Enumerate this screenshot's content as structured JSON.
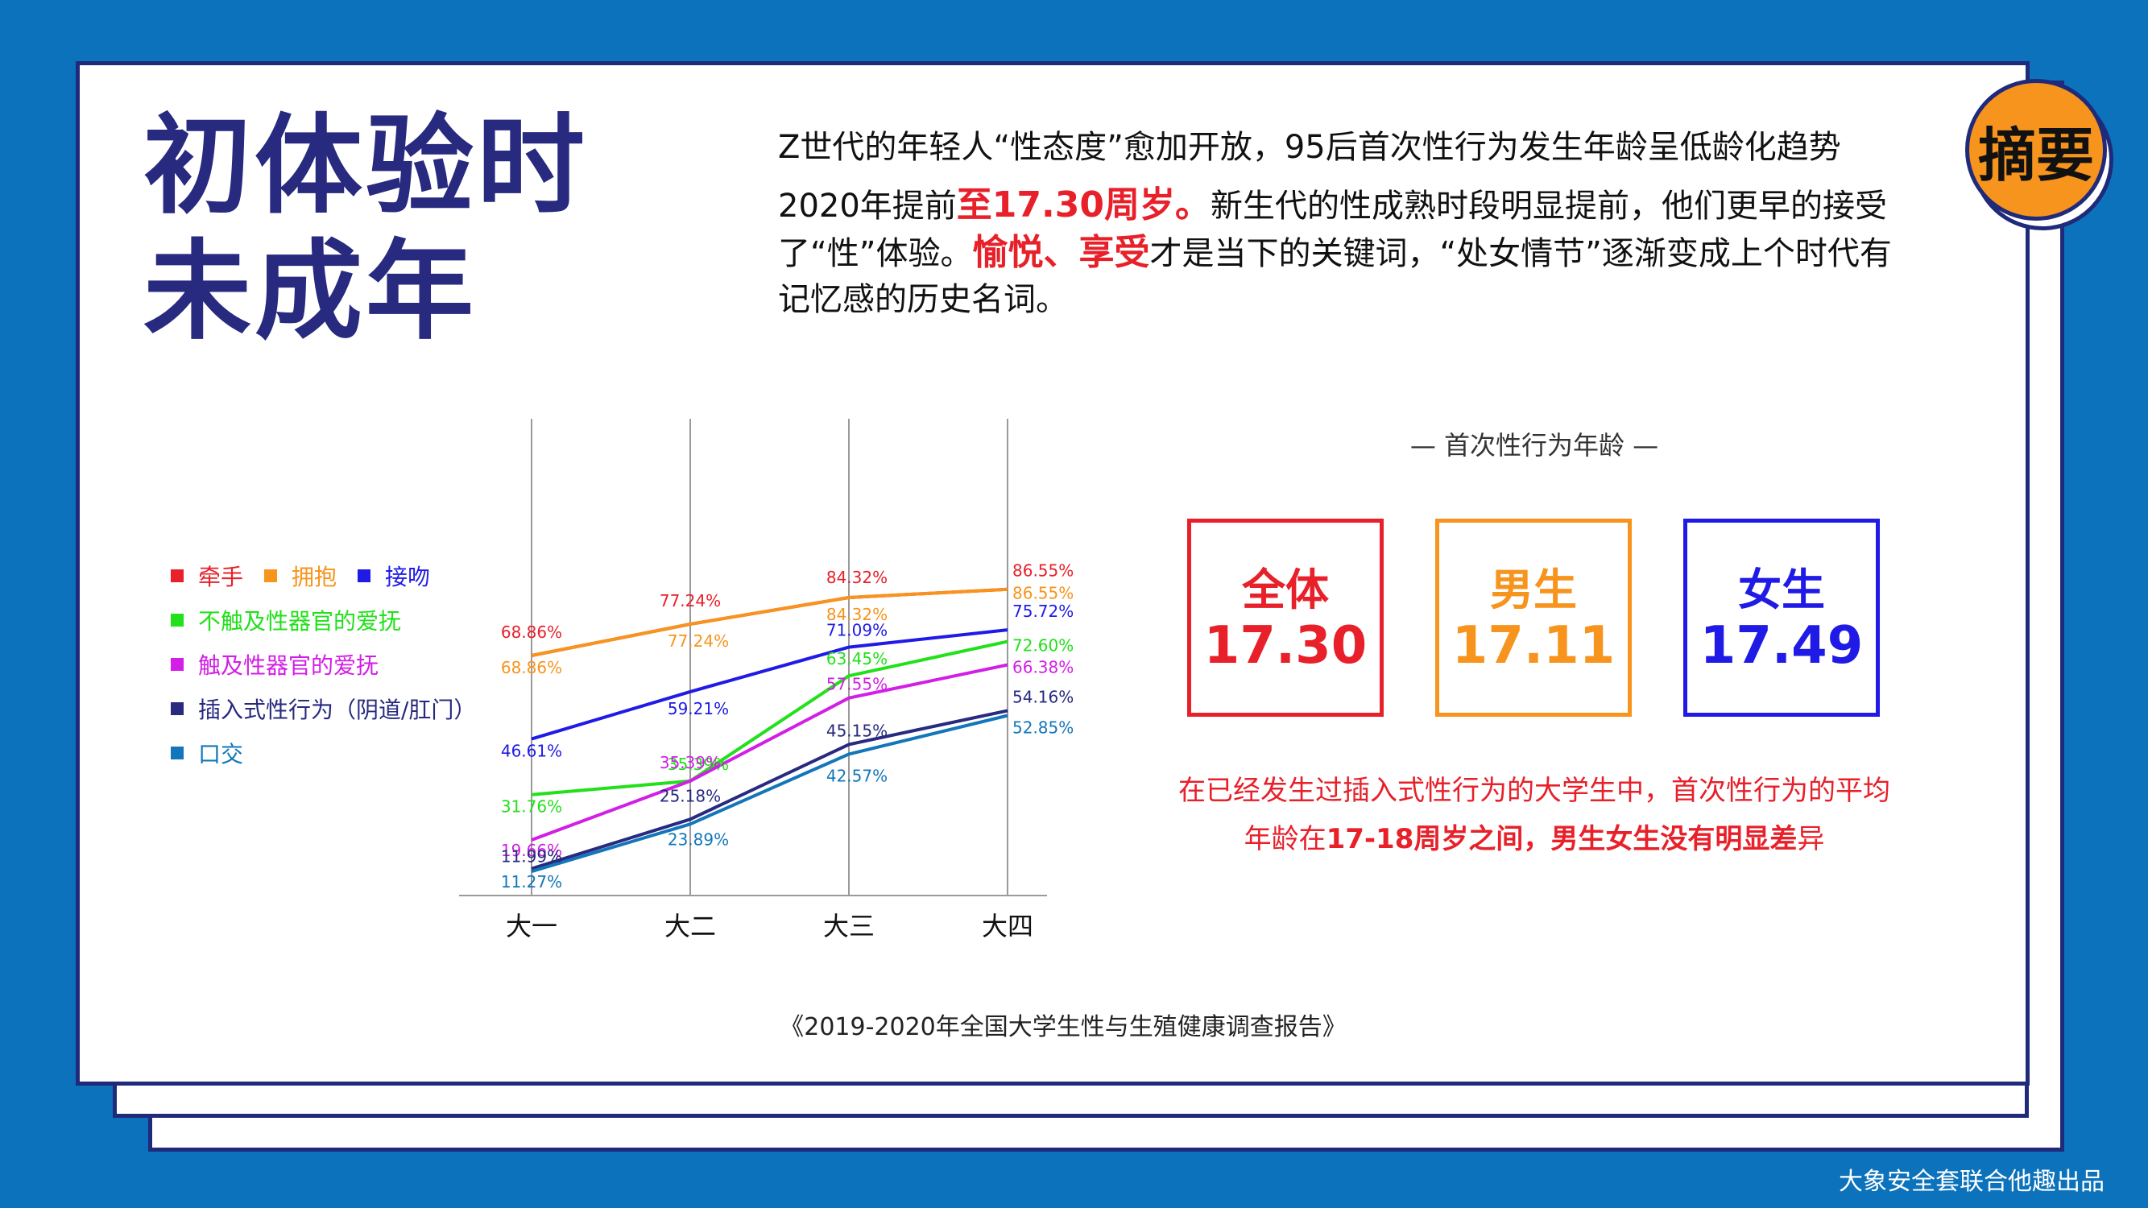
{
  "badge": "摘要",
  "title_lines": [
    "初体验时",
    "未成年"
  ],
  "lead": "Z世代的年轻人“性态度”愈加开放，95后首次性行为发生年龄呈低龄化趋势",
  "para": {
    "p1": "2020年提前",
    "h1": "至17.30周岁。",
    "p2": "新生代的性成熟时段明显提前，他们更早的接受了“性”体验。",
    "h2": "愉悦、享受",
    "p3": "才是当下的关键词，“处女情节”逐渐变成上个时代有记忆感的历史名词。"
  },
  "legend": [
    {
      "name": "牵手",
      "color": "#e8202a"
    },
    {
      "name": "拥抱",
      "color": "#f7941d"
    },
    {
      "name": "接吻",
      "color": "#1f1ae6"
    },
    {
      "name": "不触及性器官的爱抚",
      "color": "#22e01a"
    },
    {
      "name": "触及性器官的爱抚",
      "color": "#d21ee6"
    },
    {
      "name": "插入式性行为（阴道/肛门）",
      "color": "#272a7e"
    },
    {
      "name": "口交",
      "color": "#1376ba"
    }
  ],
  "chart_data": {
    "type": "line",
    "categories": [
      "大一",
      "大二",
      "大三",
      "大四"
    ],
    "ylim": [
      0,
      100
    ],
    "grid": "vertical",
    "legend_position": "left",
    "series": [
      {
        "name": "牵手",
        "values": [
          68.86,
          77.24,
          84.32,
          86.55
        ],
        "labels": [
          "68.86%",
          "77.24%",
          "84.32%",
          "86.55%"
        ]
      },
      {
        "name": "拥抱",
        "values": [
          68.86,
          77.24,
          84.32,
          86.55
        ],
        "labels": [
          "68.86%",
          "77.24%",
          "84.32%",
          "86.55%"
        ]
      },
      {
        "name": "接吻",
        "values": [
          46.61,
          59.21,
          71.09,
          75.72
        ],
        "labels": [
          "46.61%",
          "59.21%",
          "71.09%",
          "75.72%"
        ]
      },
      {
        "name": "不触及性器官的爱抚",
        "values": [
          31.76,
          35.39,
          63.45,
          72.6
        ],
        "labels": [
          "31.76%",
          "35.39%",
          "63.45%",
          "72.60%"
        ]
      },
      {
        "name": "触及性器官的爱抚",
        "values": [
          19.66,
          35.39,
          57.55,
          66.38
        ],
        "labels": [
          "19.66%",
          "35.39%",
          "57.55%",
          "66.38%"
        ]
      },
      {
        "name": "插入式性行为（阴道/肛门）",
        "values": [
          11.99,
          25.18,
          45.15,
          54.16
        ],
        "labels": [
          "11.99%",
          "25.18%",
          "45.15%",
          "54.16%"
        ]
      },
      {
        "name": "口交",
        "values": [
          11.27,
          23.89,
          42.57,
          52.85
        ],
        "labels": [
          "11.27%",
          "23.89%",
          "42.57%",
          "52.85%"
        ]
      }
    ]
  },
  "age": {
    "title": "— 首次性行为年龄 —",
    "boxes": [
      {
        "label": "全体",
        "value": "17.30",
        "color": "#e8202a"
      },
      {
        "label": "男生",
        "value": "17.11",
        "color": "#f7941d"
      },
      {
        "label": "女生",
        "value": "17.49",
        "color": "#1f1ae6"
      }
    ]
  },
  "note": {
    "line1": "在已经发生过插入式性行为的大学生中，首次性行为的平均",
    "line2a": "年龄在",
    "line2b": "17-18周岁之间，男生女生没有明显差",
    "line2c": "异"
  },
  "source": "《2019-2020年全国大学生性与生殖健康调查报告》",
  "credit": "大象安全套联合他趣出品"
}
